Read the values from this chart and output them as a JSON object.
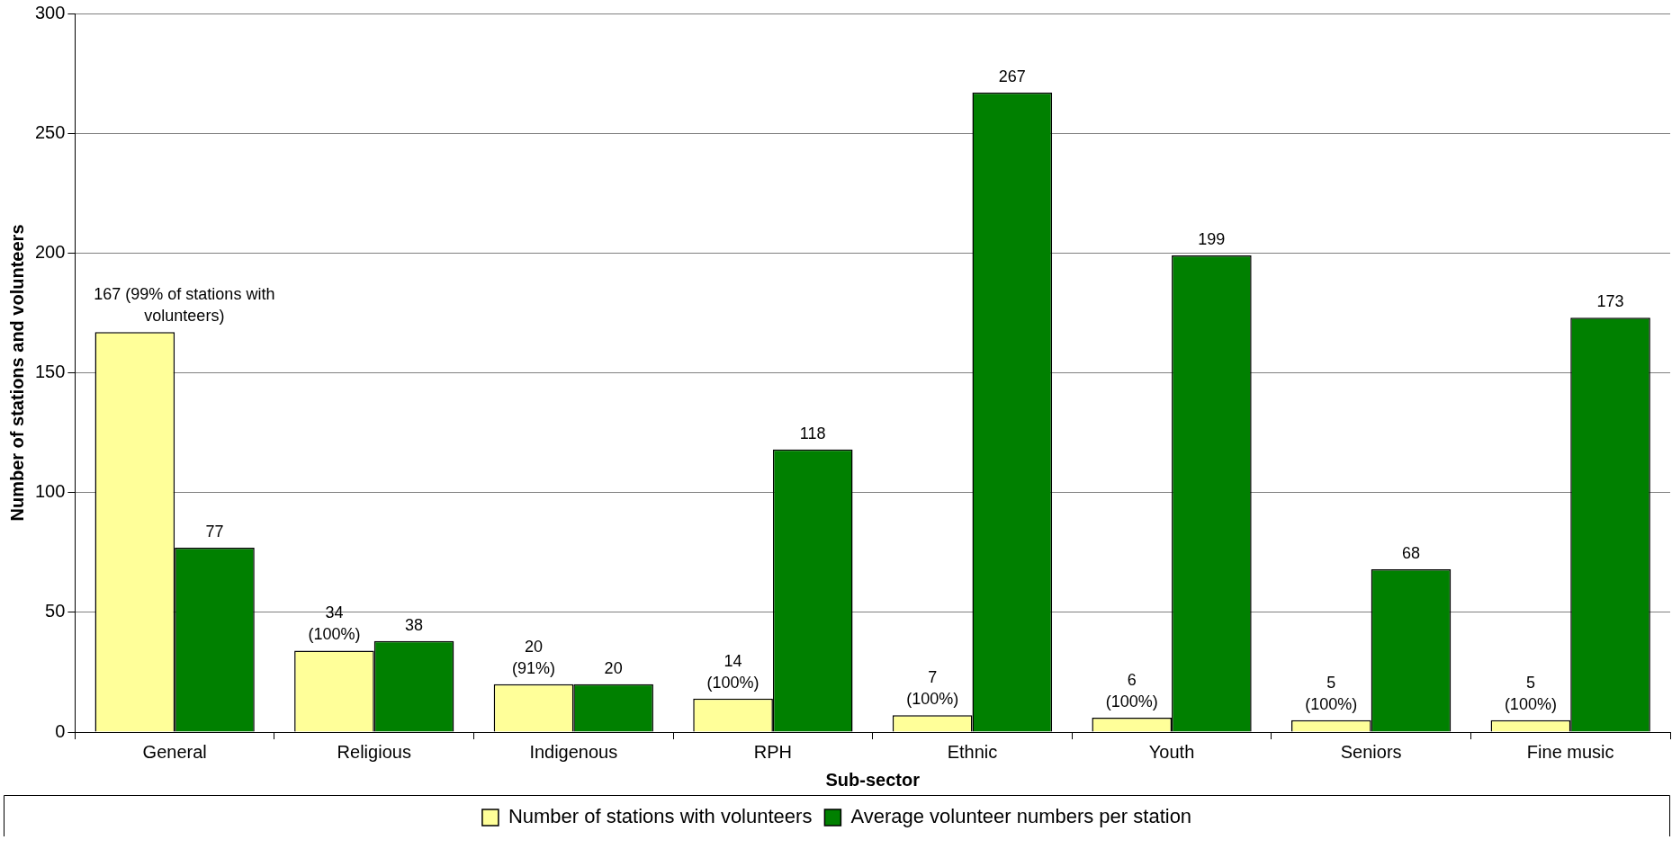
{
  "chart_data": {
    "type": "bar",
    "xlabel": "Sub-sector",
    "ylabel": "Number of stations and volunteers",
    "categories": [
      "General",
      "Religious",
      "Indigenous",
      "RPH",
      "Ethnic",
      "Youth",
      "Seniors",
      "Fine music"
    ],
    "series": [
      {
        "name": "Number of stations with volunteers",
        "color": "#ffff99",
        "values": [
          167,
          34,
          20,
          14,
          7,
          6,
          5,
          5
        ],
        "value_labels": [
          "167 (99% of stations with\nvolunteers)",
          "34\n(100%)",
          "20\n(91%)",
          "14\n(100%)",
          "7\n(100%)",
          "6\n(100%)",
          "5\n(100%)",
          "5\n(100%)"
        ]
      },
      {
        "name": "Average volunteer numbers per station",
        "color": "#008000",
        "values": [
          77,
          38,
          20,
          118,
          267,
          199,
          68,
          173
        ],
        "value_labels": [
          "77",
          "38",
          "20",
          "118",
          "267",
          "199",
          "68",
          "173"
        ]
      }
    ],
    "ylim": [
      0,
      300
    ],
    "yticks": [
      0,
      50,
      100,
      150,
      200,
      250,
      300
    ],
    "grid": "y",
    "legend": "bottom"
  }
}
